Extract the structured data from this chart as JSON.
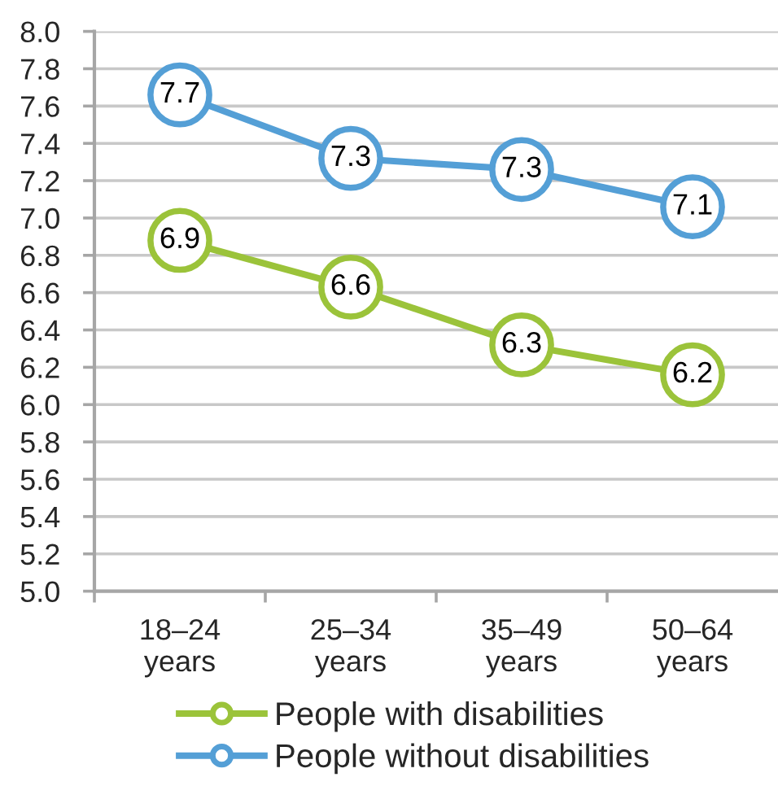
{
  "chart_data": {
    "type": "line",
    "categories": [
      "18–24\nyears",
      "25–34\nyears",
      "35–49\nyears",
      "50–64\nyears"
    ],
    "series": [
      {
        "name": "People with disabilities",
        "color": "#9bc33a",
        "values": [
          6.88,
          6.63,
          6.32,
          6.16
        ],
        "value_labels": [
          "6.9",
          "6.6",
          "6.3",
          "6.2"
        ]
      },
      {
        "name": "People without disabilities",
        "color": "#549fd6",
        "values": [
          7.66,
          7.32,
          7.26,
          7.06
        ],
        "value_labels": [
          "7.7",
          "7.3",
          "7.3",
          "7.1"
        ]
      }
    ],
    "ylim": [
      5.0,
      8.0
    ],
    "yticks": [
      {
        "value": 5.0,
        "label": "5.0"
      },
      {
        "value": 5.2,
        "label": "5.2"
      },
      {
        "value": 5.4,
        "label": "5.4"
      },
      {
        "value": 5.6,
        "label": "5.6"
      },
      {
        "value": 5.8,
        "label": "5.8"
      },
      {
        "value": 6.0,
        "label": "6.0"
      },
      {
        "value": 6.2,
        "label": "6.2"
      },
      {
        "value": 6.4,
        "label": "6.4"
      },
      {
        "value": 6.6,
        "label": "6.6"
      },
      {
        "value": 6.8,
        "label": "6.8"
      },
      {
        "value": 7.0,
        "label": "7.0"
      },
      {
        "value": 7.2,
        "label": "7.2"
      },
      {
        "value": 7.4,
        "label": "7.4"
      },
      {
        "value": 7.6,
        "label": "7.6"
      },
      {
        "value": 7.8,
        "label": "7.8"
      },
      {
        "value": 8.0,
        "label": "8.0"
      }
    ],
    "grid": "y",
    "legend": "bottom",
    "marker": "circle",
    "line_style": "solid"
  }
}
